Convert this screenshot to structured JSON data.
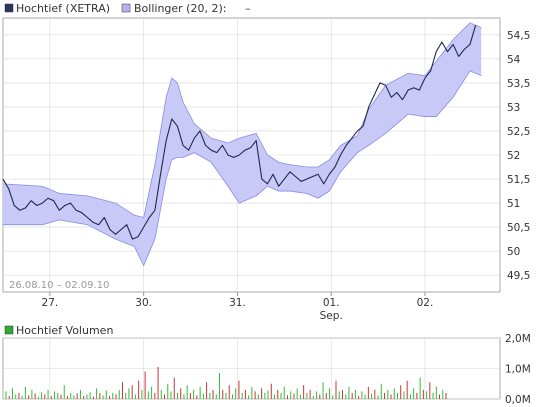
{
  "legend": {
    "series_label": "Hochtief (XETRA)",
    "band_label": "Bollinger (20, 2):",
    "band_value": "–"
  },
  "date_range": "26.08.10 – 02.09.10",
  "volume_title": "Hochtief Volumen",
  "x_ticks": [
    {
      "label": "27.",
      "pos": 0.5
    },
    {
      "label": "30.",
      "pos": 1.5
    },
    {
      "label": "31.",
      "pos": 2.5
    },
    {
      "label": "01.",
      "pos": 3.5
    },
    {
      "label": "02.",
      "pos": 4.5
    }
  ],
  "x_sub_label": {
    "label": "Sep.",
    "pos": 3.5
  },
  "colors": {
    "price_line": "#1e2a4a",
    "band_fill": "#c9c9f7",
    "band_line": "#8a8ae8",
    "legend_series_swatch": "#2c3560",
    "legend_band_swatch": "#b3b3ee",
    "volume_up": "#33bb33",
    "volume_down": "#cc3333",
    "grid": "#d8d8d8",
    "volume_swatch": "#33aa33"
  },
  "chart_data": [
    {
      "type": "line",
      "title": "Hochtief (XETRA)",
      "y_ticks": [
        49.5,
        50,
        50.5,
        51,
        51.5,
        52,
        52.5,
        53,
        53.5,
        54,
        54.5
      ],
      "ylim": [
        49.15,
        54.85
      ],
      "xlim": [
        0,
        5.3
      ],
      "series": [
        {
          "name": "Hochtief (XETRA)",
          "x": [
            0.0,
            0.06,
            0.12,
            0.18,
            0.24,
            0.3,
            0.36,
            0.42,
            0.48,
            0.54,
            0.6,
            0.66,
            0.72,
            0.78,
            0.84,
            0.9,
            0.96,
            1.02,
            1.08,
            1.14,
            1.2,
            1.26,
            1.32,
            1.38,
            1.44,
            1.5,
            1.56,
            1.62,
            1.68,
            1.74,
            1.8,
            1.86,
            1.92,
            1.98,
            2.04,
            2.1,
            2.16,
            2.22,
            2.28,
            2.34,
            2.4,
            2.46,
            2.52,
            2.58,
            2.64,
            2.7,
            2.76,
            2.82,
            2.88,
            2.94,
            3.0,
            3.06,
            3.12,
            3.18,
            3.24,
            3.3,
            3.36,
            3.42,
            3.48,
            3.54,
            3.6,
            3.66,
            3.72,
            3.78,
            3.84,
            3.9,
            3.96,
            4.02,
            4.08,
            4.14,
            4.2,
            4.26,
            4.32,
            4.38,
            4.44,
            4.5,
            4.56,
            4.62,
            4.68,
            4.74,
            4.8,
            4.86,
            4.92,
            4.98,
            5.04
          ],
          "values": [
            51.5,
            51.3,
            50.95,
            50.85,
            50.9,
            51.05,
            50.95,
            51.0,
            51.1,
            51.05,
            50.85,
            50.95,
            51.0,
            50.85,
            50.8,
            50.7,
            50.6,
            50.55,
            50.7,
            50.45,
            50.35,
            50.45,
            50.55,
            50.25,
            50.3,
            50.5,
            50.7,
            50.85,
            51.6,
            52.3,
            52.75,
            52.6,
            52.2,
            52.1,
            52.35,
            52.5,
            52.2,
            52.1,
            52.05,
            52.2,
            52.0,
            51.95,
            52.0,
            52.1,
            52.15,
            52.3,
            51.5,
            51.4,
            51.6,
            51.35,
            51.5,
            51.65,
            51.55,
            51.45,
            51.5,
            51.55,
            51.6,
            51.4,
            51.6,
            51.75,
            52.0,
            52.2,
            52.35,
            52.5,
            52.6,
            53.0,
            53.25,
            53.5,
            53.45,
            53.2,
            53.3,
            53.15,
            53.35,
            53.4,
            53.35,
            53.6,
            53.75,
            54.15,
            54.35,
            54.15,
            54.3,
            54.05,
            54.2,
            54.3,
            54.7
          ]
        },
        {
          "name": "Bollinger upper",
          "x": [
            0.0,
            0.42,
            0.6,
            0.9,
            1.2,
            1.4,
            1.5,
            1.62,
            1.74,
            1.8,
            1.86,
            1.92,
            2.04,
            2.22,
            2.4,
            2.52,
            2.7,
            2.82,
            2.94,
            3.06,
            3.24,
            3.36,
            3.48,
            3.6,
            3.78,
            3.9,
            4.08,
            4.32,
            4.5,
            4.62,
            4.8,
            4.98,
            5.1
          ],
          "values": [
            51.4,
            51.35,
            51.2,
            51.15,
            51.0,
            50.75,
            50.7,
            51.8,
            53.2,
            53.6,
            53.5,
            53.1,
            52.65,
            52.35,
            52.25,
            52.35,
            52.45,
            52.0,
            51.85,
            51.8,
            51.75,
            51.75,
            51.9,
            52.2,
            52.4,
            52.95,
            53.45,
            53.7,
            53.65,
            53.95,
            54.4,
            54.75,
            54.65
          ]
        },
        {
          "name": "Bollinger lower",
          "x": [
            0.0,
            0.42,
            0.6,
            0.9,
            1.2,
            1.4,
            1.5,
            1.62,
            1.74,
            1.8,
            1.86,
            1.92,
            2.04,
            2.22,
            2.4,
            2.52,
            2.7,
            2.82,
            2.94,
            3.06,
            3.24,
            3.36,
            3.48,
            3.6,
            3.78,
            3.9,
            4.08,
            4.32,
            4.5,
            4.62,
            4.8,
            4.98,
            5.1
          ],
          "values": [
            50.55,
            50.55,
            50.65,
            50.55,
            50.25,
            50.1,
            49.7,
            50.25,
            51.5,
            51.9,
            51.95,
            51.95,
            52.05,
            51.85,
            51.35,
            51.0,
            51.15,
            51.35,
            51.25,
            51.25,
            51.2,
            51.1,
            51.25,
            51.65,
            52.05,
            52.2,
            52.45,
            52.85,
            52.8,
            52.8,
            53.2,
            53.75,
            53.65
          ]
        }
      ]
    },
    {
      "type": "bar",
      "title": "Hochtief Volumen",
      "y_ticks": [
        "0,0M",
        "1,0M",
        "2,0M"
      ],
      "ylim": [
        0,
        2.0
      ],
      "unit": "M",
      "values": [
        0.25,
        0.1,
        0.35,
        0.15,
        0.2,
        0.1,
        0.4,
        0.12,
        0.3,
        0.18,
        0.08,
        0.22,
        0.15,
        0.3,
        0.1,
        0.25,
        0.2,
        0.14,
        0.45,
        0.1,
        0.2,
        0.12,
        0.18,
        0.3,
        0.1,
        0.15,
        0.22,
        0.08,
        0.35,
        0.2,
        0.12,
        0.28,
        0.1,
        0.2,
        0.15,
        0.3,
        0.55,
        0.2,
        0.35,
        0.45,
        0.15,
        0.6,
        0.3,
        0.9,
        0.25,
        0.4,
        0.2,
        1.05,
        0.3,
        0.15,
        0.5,
        0.25,
        0.7,
        0.2,
        0.35,
        0.15,
        0.45,
        0.2,
        0.3,
        0.12,
        0.4,
        0.18,
        0.55,
        0.2,
        0.3,
        0.15,
        0.85,
        0.3,
        0.2,
        0.45,
        0.15,
        0.35,
        0.6,
        0.2,
        0.3,
        0.12,
        0.4,
        0.25,
        0.15,
        0.35,
        0.2,
        0.28,
        0.5,
        0.15,
        0.3,
        0.2,
        0.4,
        0.12,
        0.25,
        0.18,
        0.35,
        0.15,
        0.45,
        0.2,
        0.3,
        0.1,
        0.25,
        0.15,
        0.55,
        0.2,
        0.35,
        0.12,
        0.6,
        0.25,
        0.3,
        0.15,
        0.4,
        0.2,
        0.3,
        0.1,
        0.25,
        0.15,
        0.4,
        0.18,
        0.3,
        0.12,
        0.5,
        0.2,
        0.3,
        0.15,
        0.35,
        0.2,
        0.45,
        0.25,
        0.6,
        0.15,
        0.35,
        0.2,
        0.7,
        0.3,
        0.25,
        0.55,
        0.2,
        0.4,
        0.15,
        0.3,
        0.2
      ],
      "colors": [
        "g",
        "r",
        "g",
        "g",
        "r",
        "g",
        "g",
        "r",
        "g",
        "r",
        "g",
        "g",
        "r",
        "g",
        "r",
        "g",
        "g",
        "r",
        "g",
        "r",
        "g",
        "g",
        "r",
        "g",
        "r",
        "g",
        "g",
        "r",
        "g",
        "r",
        "g",
        "g",
        "r",
        "g",
        "r",
        "g",
        "r",
        "g",
        "g",
        "r",
        "g",
        "r",
        "g",
        "r",
        "g",
        "g",
        "r",
        "r",
        "g",
        "r",
        "g",
        "g",
        "r",
        "g",
        "r",
        "g",
        "g",
        "r",
        "g",
        "r",
        "g",
        "g",
        "r",
        "g",
        "r",
        "g",
        "g",
        "r",
        "g",
        "r",
        "g",
        "g",
        "r",
        "g",
        "r",
        "g",
        "g",
        "r",
        "g",
        "r",
        "g",
        "g",
        "r",
        "g",
        "r",
        "g",
        "g",
        "r",
        "g",
        "r",
        "g",
        "g",
        "r",
        "g",
        "r",
        "g",
        "g",
        "r",
        "g",
        "r",
        "g",
        "g",
        "r",
        "g",
        "r",
        "g",
        "g",
        "r",
        "g",
        "r",
        "g",
        "g",
        "r",
        "g",
        "r",
        "g",
        "g",
        "r",
        "g",
        "r",
        "g",
        "g",
        "r",
        "g",
        "r",
        "g",
        "g",
        "r",
        "g",
        "r",
        "g",
        "r",
        "g",
        "g",
        "r",
        "g",
        "r",
        "g"
      ]
    }
  ]
}
